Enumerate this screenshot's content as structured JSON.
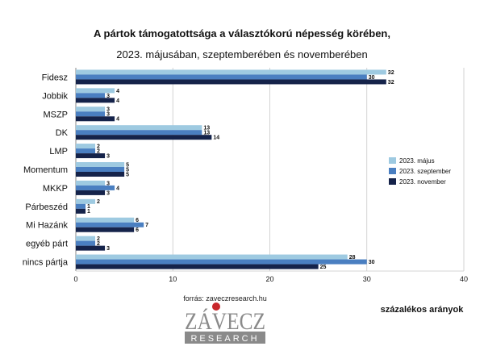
{
  "chart_data": {
    "type": "bar",
    "orientation": "horizontal",
    "title": "A pártok támogatottsága a választókorú népesség körében,",
    "subtitle": "2023. májusában, szeptemberében és novemberében",
    "categories": [
      "Fidesz",
      "Jobbik",
      "MSZP",
      "DK",
      "LMP",
      "Momentum",
      "MKKP",
      "Párbeszéd",
      "Mi Hazánk",
      "egyéb párt",
      "nincs pártja"
    ],
    "series": [
      {
        "name": "2023. május",
        "color": "#9ecae1",
        "values": [
          32,
          4,
          3,
          13,
          2,
          5,
          3,
          2,
          6,
          2,
          28
        ]
      },
      {
        "name": "2023. szeptember",
        "color": "#4a7fc1",
        "values": [
          30,
          3,
          3,
          13,
          2,
          5,
          4,
          1,
          7,
          2,
          30
        ]
      },
      {
        "name": "2023. november",
        "color": "#15234a",
        "values": [
          32,
          4,
          4,
          14,
          3,
          5,
          3,
          1,
          6,
          3,
          25
        ]
      }
    ],
    "xlim": [
      0,
      40
    ],
    "xticks": [
      0,
      10,
      20,
      30,
      40
    ],
    "grid": true,
    "legend_position": "right"
  },
  "footer": {
    "source": "forrás: zaveczresearch.hu",
    "logo_top": "ZÁVECZ",
    "logo_bottom": "RESEARCH",
    "units_note": "százalékos arányok"
  }
}
